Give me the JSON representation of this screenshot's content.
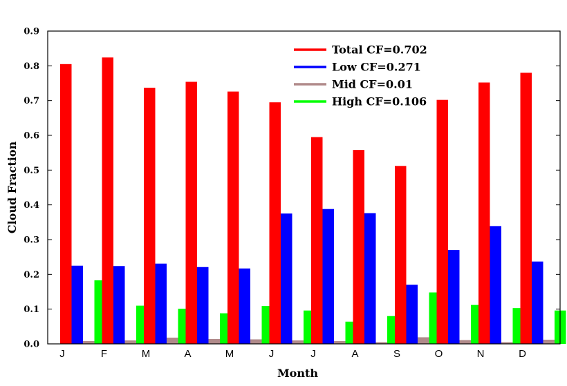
{
  "chart_data": {
    "type": "bar",
    "title": "",
    "xlabel": "Month",
    "ylabel": "Cloud Fraction",
    "ylim": [
      0,
      0.9
    ],
    "yticks": [
      "0.0",
      "0.1",
      "0.2",
      "0.3",
      "0.4",
      "0.5",
      "0.6",
      "0.7",
      "0.8",
      "0.9"
    ],
    "categories": [
      "J",
      "F",
      "M",
      "A",
      "M",
      "J",
      "J",
      "A",
      "S",
      "O",
      "N",
      "D"
    ],
    "legend_position": "top-right",
    "grid": false,
    "series": [
      {
        "name": "Total CF=0.702",
        "color": "#ff0000",
        "values": [
          0.805,
          0.824,
          0.737,
          0.754,
          0.726,
          0.695,
          0.595,
          0.558,
          0.512,
          0.702,
          0.752,
          0.78
        ]
      },
      {
        "name": "Low CF=0.271",
        "color": "#0000ff",
        "values": [
          0.225,
          0.224,
          0.231,
          0.221,
          0.217,
          0.375,
          0.388,
          0.376,
          0.17,
          0.27,
          0.339,
          0.237
        ]
      },
      {
        "name": "Mid CF=0.01",
        "color": "#b08a8a",
        "values": [
          0.008,
          0.01,
          0.018,
          0.014,
          0.013,
          0.01,
          0.008,
          0.005,
          0.019,
          0.011,
          0.005,
          0.012
        ]
      },
      {
        "name": "High CF=0.106",
        "color": "#00ff00",
        "values": [
          0.183,
          0.11,
          0.101,
          0.088,
          0.109,
          0.096,
          0.064,
          0.08,
          0.148,
          0.112,
          0.103,
          0.096
        ]
      }
    ]
  }
}
